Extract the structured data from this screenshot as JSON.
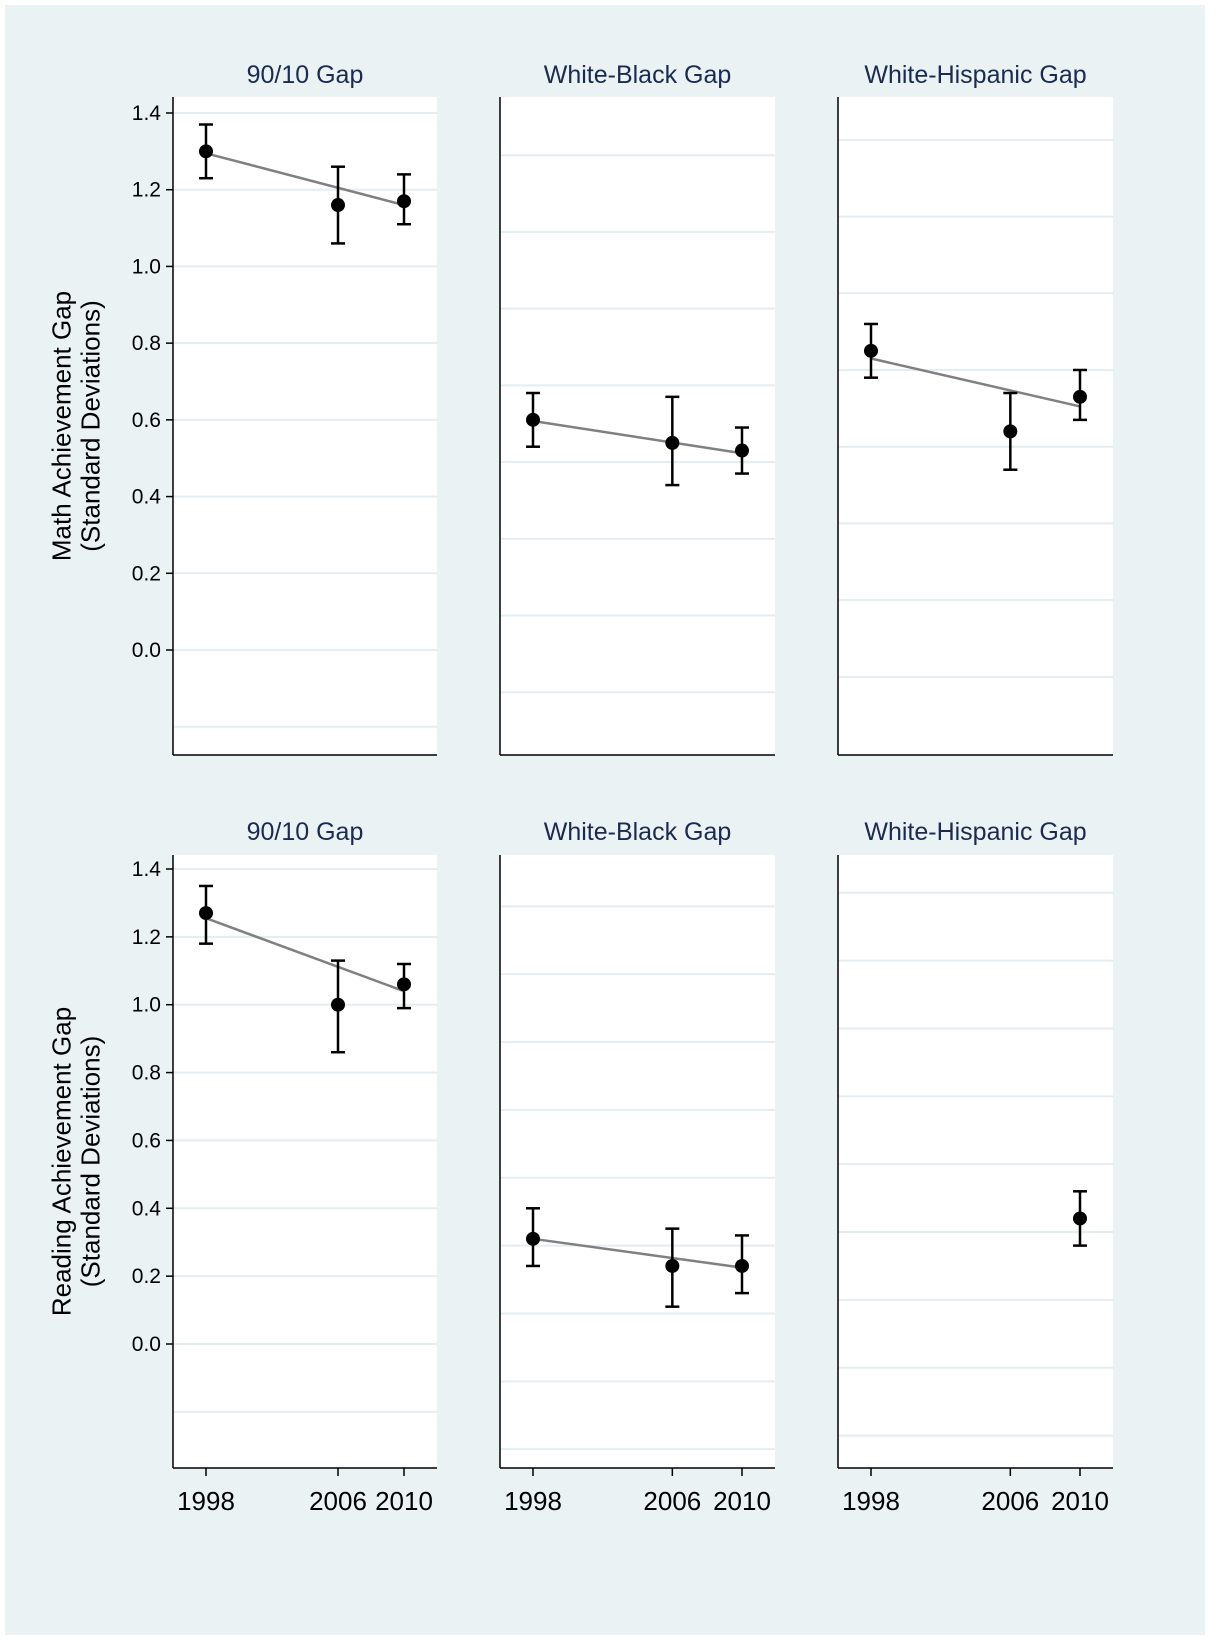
{
  "chart_data": [
    {
      "type": "scatter",
      "row": "math",
      "ylabel": [
        "Math Achievement Gap",
        "(Standard Deviations)"
      ],
      "ylim": [
        -0.27,
        1.45
      ],
      "yticks": [
        0.0,
        0.2,
        0.4,
        0.6,
        0.8,
        1.0,
        1.2,
        1.4
      ],
      "x_ticks": [
        "1998",
        "2006",
        "2010"
      ],
      "grid": true,
      "panels": [
        {
          "title": "90/10 Gap",
          "points": [
            {
              "x": 1998,
              "y": 1.3,
              "lo": 1.23,
              "hi": 1.37
            },
            {
              "x": 2006,
              "y": 1.16,
              "lo": 1.06,
              "hi": 1.26
            },
            {
              "x": 2010,
              "y": 1.17,
              "lo": 1.11,
              "hi": 1.24
            }
          ],
          "trend": [
            [
              1998,
              1.295
            ],
            [
              2010,
              1.16
            ]
          ]
        },
        {
          "title": "White-Black Gap",
          "points": [
            {
              "x": 1998,
              "y": 0.6,
              "lo": 0.53,
              "hi": 0.67
            },
            {
              "x": 2006,
              "y": 0.54,
              "lo": 0.43,
              "hi": 0.66
            },
            {
              "x": 2010,
              "y": 0.52,
              "lo": 0.46,
              "hi": 0.58
            }
          ],
          "trend": [
            [
              1998,
              0.597
            ],
            [
              2010,
              0.513
            ]
          ]
        },
        {
          "title": "White-Hispanic Gap",
          "points": [
            {
              "x": 1998,
              "y": 0.78,
              "lo": 0.71,
              "hi": 0.85
            },
            {
              "x": 2006,
              "y": 0.57,
              "lo": 0.47,
              "hi": 0.67
            },
            {
              "x": 2010,
              "y": 0.66,
              "lo": 0.6,
              "hi": 0.73
            }
          ],
          "trend": [
            [
              1998,
              0.76
            ],
            [
              2010,
              0.635
            ]
          ]
        }
      ]
    },
    {
      "type": "scatter",
      "row": "reading",
      "ylabel": [
        "Reading Achievement Gap",
        "(Standard Deviations)"
      ],
      "ylim": [
        -0.36,
        1.45
      ],
      "yticks": [
        0.0,
        0.2,
        0.4,
        0.6,
        0.8,
        1.0,
        1.2,
        1.4
      ],
      "x_ticks": [
        "1998",
        "2006",
        "2010"
      ],
      "grid": true,
      "panels": [
        {
          "title": "90/10 Gap",
          "points": [
            {
              "x": 1998,
              "y": 1.27,
              "lo": 1.18,
              "hi": 1.35
            },
            {
              "x": 2006,
              "y": 1.0,
              "lo": 0.86,
              "hi": 1.13
            },
            {
              "x": 2010,
              "y": 1.06,
              "lo": 0.99,
              "hi": 1.12
            }
          ],
          "trend": [
            [
              1998,
              1.255
            ],
            [
              2010,
              1.04
            ]
          ]
        },
        {
          "title": "White-Black Gap",
          "points": [
            {
              "x": 1998,
              "y": 0.31,
              "lo": 0.23,
              "hi": 0.4
            },
            {
              "x": 2006,
              "y": 0.23,
              "lo": 0.11,
              "hi": 0.34
            },
            {
              "x": 2010,
              "y": 0.23,
              "lo": 0.15,
              "hi": 0.32
            }
          ],
          "trend": [
            [
              1998,
              0.31
            ],
            [
              2010,
              0.225
            ]
          ]
        },
        {
          "title": "White-Hispanic Gap",
          "points": [
            {
              "x": 2010,
              "y": 0.37,
              "lo": 0.29,
              "hi": 0.45
            }
          ],
          "trend": null
        }
      ]
    }
  ]
}
